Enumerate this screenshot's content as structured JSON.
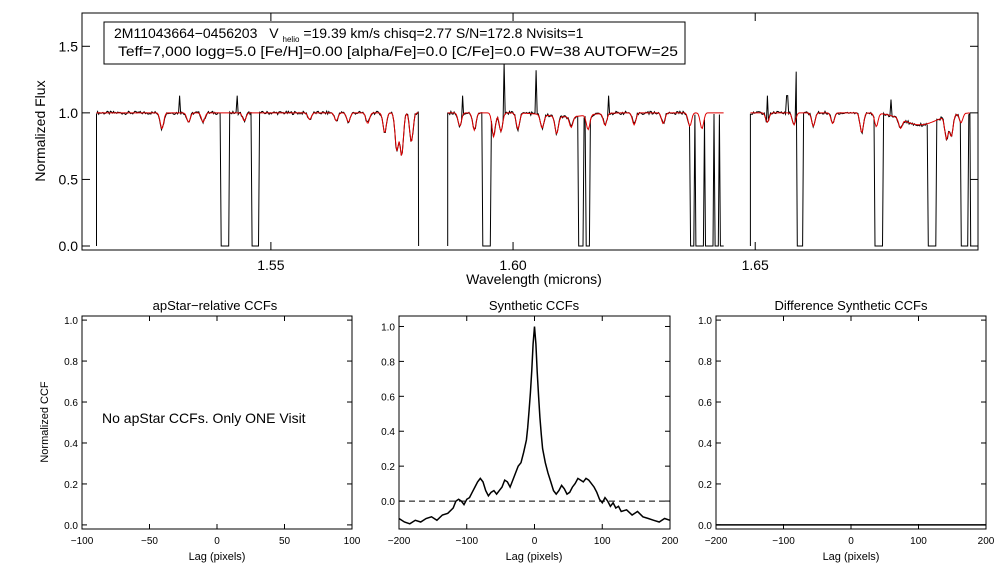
{
  "chart_data": [
    {
      "type": "line",
      "xlabel": "Wavelength (microns)",
      "ylabel": "Normalized Flux",
      "xlim": [
        1.511,
        1.696
      ],
      "ylim": [
        -0.03,
        1.75
      ],
      "x_ticks": [
        "1.55",
        "1.60",
        "1.65"
      ],
      "y_ticks": [
        "0.0",
        "0.5",
        "1.0",
        "1.5"
      ],
      "info_box": {
        "star_id": "2M11043664−0456203",
        "vhelio_label": "V",
        "vhelio_sub": "helio",
        "line1_rest": "=19.39 km/s  chisq=2.77  S/N=172.8  Nvisits=1",
        "line2": "Teff=7,000 logg=5.0 [Fe/H]=0.00 [alpha/Fe]=0.0 [C/Fe]=0.0 FW=38 AUTOFW=25"
      },
      "chips": [
        [
          1.514,
          1.5805
        ],
        [
          1.5865,
          1.6435
        ],
        [
          1.649,
          1.6945
        ]
      ],
      "continuum": 1.0,
      "observed_color": "#000000",
      "model_color": "#dd0000",
      "emission_spikes": [
        [
          1.5312,
          1.13
        ],
        [
          1.543,
          1.13
        ],
        [
          1.5895,
          1.13
        ],
        [
          1.5982,
          1.38
        ],
        [
          1.6047,
          1.32
        ],
        [
          1.6145,
          1.18
        ],
        [
          1.6197,
          1.13
        ],
        [
          1.643,
          1.21
        ],
        [
          1.6525,
          1.13
        ],
        [
          1.6566,
          1.13
        ],
        [
          1.6584,
          1.31
        ],
        [
          1.678,
          1.1
        ]
      ],
      "absorption_lines": [
        [
          1.5275,
          0.88
        ],
        [
          1.533,
          0.93
        ],
        [
          1.536,
          0.93
        ],
        [
          1.5445,
          0.94
        ],
        [
          1.558,
          0.95
        ],
        [
          1.5635,
          0.94
        ],
        [
          1.566,
          0.93
        ],
        [
          1.57,
          0.92
        ],
        [
          1.5735,
          0.85
        ],
        [
          1.576,
          0.72
        ],
        [
          1.577,
          0.68
        ],
        [
          1.579,
          0.78
        ],
        [
          1.589,
          0.9
        ],
        [
          1.592,
          0.87
        ],
        [
          1.596,
          0.82
        ],
        [
          1.5975,
          0.86
        ],
        [
          1.601,
          0.88
        ],
        [
          1.606,
          0.9
        ],
        [
          1.609,
          0.87
        ],
        [
          1.612,
          0.92
        ],
        [
          1.6155,
          0.89
        ],
        [
          1.619,
          0.91
        ],
        [
          1.625,
          0.91
        ],
        [
          1.631,
          0.92
        ],
        [
          1.6365,
          0.9
        ],
        [
          1.639,
          0.88
        ],
        [
          1.6525,
          0.93
        ],
        [
          1.658,
          0.91
        ],
        [
          1.662,
          0.9
        ],
        [
          1.666,
          0.92
        ],
        [
          1.672,
          0.85
        ],
        [
          1.675,
          0.9
        ],
        [
          1.68,
          0.93
        ],
        [
          1.6895,
          0.83
        ],
        [
          1.6905,
          0.84
        ],
        [
          1.6925,
          0.93
        ]
      ],
      "broad_dips": [
        [
          1.684,
          0.09,
          0.0035
        ],
        [
          1.611,
          0.03,
          0.004
        ]
      ],
      "masked_drops": [
        1.54,
        1.541,
        1.5465,
        1.547,
        1.594,
        1.595,
        1.614,
        1.6155,
        1.637,
        1.638,
        1.639,
        1.64,
        1.641,
        1.642,
        1.6432,
        1.6485,
        1.659,
        1.6595,
        1.675,
        1.676,
        1.686,
        1.687,
        1.693,
        1.6935
      ]
    },
    {
      "type": "line",
      "title": "apStar−relative CCFs",
      "xlabel": "Lag (pixels)",
      "ylabel": "Normalized CCF",
      "xlim": [
        -100,
        100
      ],
      "ylim": [
        -0.02,
        1.02
      ],
      "x_ticks": [
        "−100",
        "−50",
        "0",
        "50",
        "100"
      ],
      "y_ticks": [
        "0.0",
        "0.2",
        "0.4",
        "0.6",
        "0.8",
        "1.0"
      ],
      "annotation": "No apStar CCFs.  Only ONE Visit",
      "series": []
    },
    {
      "type": "line",
      "title": "Synthetic CCFs",
      "xlabel": "Lag (pixels)",
      "xlim": [
        -200,
        200
      ],
      "ylim": [
        -0.16,
        1.06
      ],
      "x_ticks": [
        "−200",
        "−100",
        "0",
        "100",
        "200"
      ],
      "y_ticks": [
        "0.0",
        "0.2",
        "0.4",
        "0.6",
        "0.8",
        "1.0"
      ],
      "zero_line": "dashed",
      "series": [
        {
          "color": "#000000",
          "x": [
            -200,
            -192,
            -184,
            -176,
            -168,
            -160,
            -152,
            -144,
            -136,
            -128,
            -120,
            -116,
            -112,
            -108,
            -104,
            -100,
            -96,
            -92,
            -88,
            -84,
            -80,
            -76,
            -72,
            -68,
            -64,
            -60,
            -56,
            -52,
            -48,
            -44,
            -40,
            -36,
            -32,
            -28,
            -24,
            -20,
            -16,
            -12,
            -10,
            -8,
            -6,
            -4,
            -2,
            0,
            2,
            4,
            6,
            8,
            10,
            12,
            16,
            20,
            24,
            28,
            32,
            36,
            40,
            44,
            48,
            52,
            56,
            60,
            64,
            68,
            72,
            76,
            80,
            84,
            88,
            92,
            96,
            100,
            104,
            108,
            112,
            116,
            120,
            124,
            128,
            136,
            144,
            152,
            160,
            168,
            176,
            184,
            192,
            200
          ],
          "y": [
            -0.1,
            -0.12,
            -0.13,
            -0.11,
            -0.12,
            -0.1,
            -0.09,
            -0.11,
            -0.08,
            -0.07,
            -0.04,
            0.0,
            0.01,
            0.0,
            -0.02,
            0.01,
            0.02,
            0.05,
            0.08,
            0.11,
            0.13,
            0.11,
            0.06,
            0.03,
            0.05,
            0.06,
            0.04,
            0.06,
            0.08,
            0.12,
            0.11,
            0.08,
            0.12,
            0.16,
            0.2,
            0.22,
            0.28,
            0.35,
            0.42,
            0.52,
            0.62,
            0.75,
            0.9,
            1.0,
            0.9,
            0.74,
            0.6,
            0.48,
            0.38,
            0.3,
            0.22,
            0.16,
            0.11,
            0.06,
            0.04,
            0.06,
            0.09,
            0.07,
            0.04,
            0.05,
            0.08,
            0.1,
            0.13,
            0.12,
            0.11,
            0.13,
            0.12,
            0.1,
            0.08,
            0.05,
            0.01,
            -0.01,
            0.02,
            0.0,
            -0.03,
            -0.01,
            -0.04,
            -0.03,
            -0.06,
            -0.05,
            -0.08,
            -0.06,
            -0.09,
            -0.1,
            -0.11,
            -0.12,
            -0.1,
            -0.11
          ]
        }
      ]
    },
    {
      "type": "line",
      "title": "Difference Synthetic CCFs",
      "xlabel": "Lag (pixels)",
      "xlim": [
        -200,
        200
      ],
      "ylim": [
        -0.02,
        1.02
      ],
      "x_ticks": [
        "−200",
        "−100",
        "0",
        "100",
        "200"
      ],
      "y_ticks": [
        "0.0",
        "0.2",
        "0.4",
        "0.6",
        "0.8",
        "1.0"
      ],
      "series": [
        {
          "color": "#000000",
          "x": [
            -200,
            200
          ],
          "y": [
            0.0,
            0.0
          ]
        }
      ]
    }
  ]
}
